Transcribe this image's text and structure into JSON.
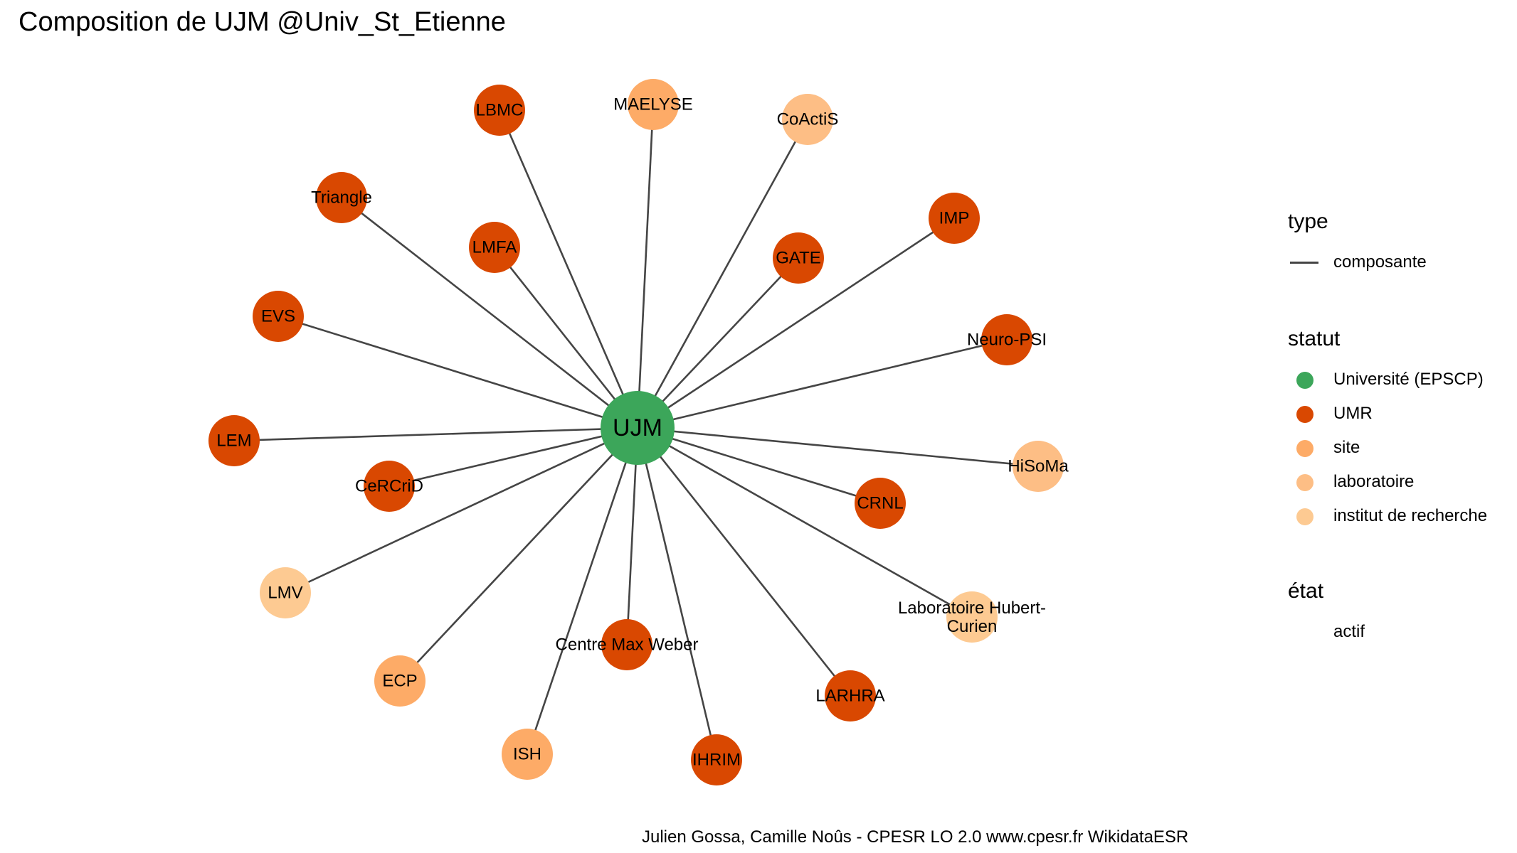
{
  "title": "Composition de UJM @Univ_St_Etienne",
  "caption": "Julien Gossa, Camille Noûs - CPESR LO 2.0 www.cpesr.fr WikidataESR",
  "colors": {
    "edge": "#454545",
    "Université (EPSCP)": "#3ca65a",
    "UMR": "#d94801",
    "site": "#fdab67",
    "laboratoire": "#fdbe85",
    "institut de recherche": "#fdca92"
  },
  "center": {
    "label": "UJM",
    "statut": "Université (EPSCP)"
  },
  "nodes": [
    {
      "label": "LBMC",
      "statut": "UMR"
    },
    {
      "label": "MAELYSE",
      "statut": "site"
    },
    {
      "label": "CoActiS",
      "statut": "laboratoire"
    },
    {
      "label": "Triangle",
      "statut": "UMR"
    },
    {
      "label": "LMFA",
      "statut": "UMR"
    },
    {
      "label": "GATE",
      "statut": "UMR"
    },
    {
      "label": "IMP",
      "statut": "UMR"
    },
    {
      "label": "EVS",
      "statut": "UMR"
    },
    {
      "label": "Neuro-PSI",
      "statut": "UMR"
    },
    {
      "label": "LEM",
      "statut": "UMR"
    },
    {
      "label": "HiSoMa",
      "statut": "laboratoire"
    },
    {
      "label": "CeRCriD",
      "statut": "UMR"
    },
    {
      "label": "CRNL",
      "statut": "UMR"
    },
    {
      "label": "LMV",
      "statut": "institut de recherche"
    },
    {
      "label": "Laboratoire Hubert-\nCurien",
      "statut": "institut de recherche"
    },
    {
      "label": "Centre Max Weber",
      "statut": "UMR"
    },
    {
      "label": "ECP",
      "statut": "site"
    },
    {
      "label": "LARHRA",
      "statut": "UMR"
    },
    {
      "label": "ISH",
      "statut": "site"
    },
    {
      "label": "IHRIM",
      "statut": "UMR"
    }
  ],
  "legend": {
    "type": {
      "title": "type",
      "items": [
        "composante"
      ]
    },
    "statut": {
      "title": "statut",
      "items": [
        "Université (EPSCP)",
        "UMR",
        "site",
        "laboratoire",
        "institut de recherche"
      ]
    },
    "etat": {
      "title": "état",
      "items": [
        "actif"
      ]
    }
  }
}
